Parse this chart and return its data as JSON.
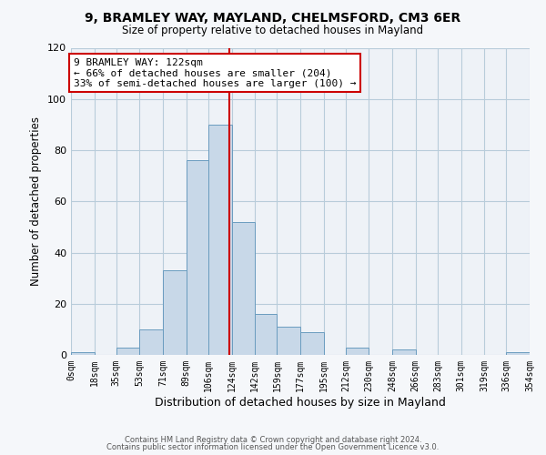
{
  "title": "9, BRAMLEY WAY, MAYLAND, CHELMSFORD, CM3 6ER",
  "subtitle": "Size of property relative to detached houses in Mayland",
  "xlabel": "Distribution of detached houses by size in Mayland",
  "ylabel": "Number of detached properties",
  "bar_color": "#c8d8e8",
  "bar_edge_color": "#6a9cbf",
  "bin_labels": [
    "0sqm",
    "18sqm",
    "35sqm",
    "53sqm",
    "71sqm",
    "89sqm",
    "106sqm",
    "124sqm",
    "142sqm",
    "159sqm",
    "177sqm",
    "195sqm",
    "212sqm",
    "230sqm",
    "248sqm",
    "266sqm",
    "283sqm",
    "301sqm",
    "319sqm",
    "336sqm",
    "354sqm"
  ],
  "bar_heights": [
    1,
    0,
    3,
    10,
    33,
    76,
    90,
    52,
    16,
    11,
    9,
    0,
    3,
    0,
    2,
    0,
    0,
    0,
    0,
    1
  ],
  "bin_edges": [
    0,
    18,
    35,
    53,
    71,
    89,
    106,
    124,
    142,
    159,
    177,
    195,
    212,
    230,
    248,
    266,
    283,
    301,
    319,
    336,
    354
  ],
  "property_size": 122,
  "vline_color": "#cc0000",
  "annotation_text": "9 BRAMLEY WAY: 122sqm\n← 66% of detached houses are smaller (204)\n33% of semi-detached houses are larger (100) →",
  "annotation_box_color": "#ffffff",
  "annotation_box_edge_color": "#cc0000",
  "ylim": [
    0,
    120
  ],
  "yticks": [
    0,
    20,
    40,
    60,
    80,
    100,
    120
  ],
  "grid_color": "#b8ccda",
  "background_color": "#eef2f7",
  "footer_line1": "Contains HM Land Registry data © Crown copyright and database right 2024.",
  "footer_line2": "Contains public sector information licensed under the Open Government Licence v3.0."
}
